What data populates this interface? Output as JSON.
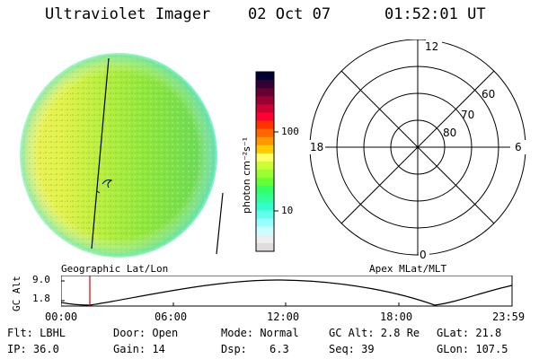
{
  "header": {
    "title": "Ultraviolet Imager",
    "date": "02 Oct 07",
    "time": "01:52:01 UT"
  },
  "image_panel": {
    "label": "Geographic Lat/Lon"
  },
  "colorbar": {
    "unit_label": "photon cm⁻²s⁻¹",
    "tick_100": "100",
    "tick_10": "10",
    "colors": [
      "#000033",
      "#330033",
      "#660033",
      "#990033",
      "#cc0033",
      "#ff0033",
      "#ff3300",
      "#ff6600",
      "#ff9900",
      "#ffcc00",
      "#ffff66",
      "#ccff33",
      "#99ff33",
      "#66ff33",
      "#33ff66",
      "#33ff99",
      "#33ffcc",
      "#66ffee",
      "#99ffff",
      "#ccffff",
      "#eeeeee",
      "#dddddd"
    ]
  },
  "polar_plot": {
    "label": "Apex MLat/MLT",
    "mlt_top": "12",
    "mlt_left": "18",
    "mlt_right": "6",
    "mlt_bottom": "0",
    "lat_60": "60",
    "lat_70": "70",
    "lat_80": "80"
  },
  "altitude_plot": {
    "axis_label": "GC Alt",
    "ymax": "9.0",
    "ymin": "1.8",
    "x_ticks": [
      "00:00",
      "06:00",
      "12:00",
      "18:00",
      "23:59"
    ]
  },
  "info": {
    "filter": "Flt: LBHL",
    "ip": "IP: 36.0",
    "door": "Door: Open",
    "gain": "Gain: 14",
    "mode": "Mode: Normal",
    "dsp_label": "Dsp:",
    "dsp_value": "6.3",
    "gc_alt": "GC Alt: 2.8 Re",
    "seq": "Seq: 39",
    "glat": "GLat:  21.8",
    "glon": "GLon: 107.5"
  }
}
